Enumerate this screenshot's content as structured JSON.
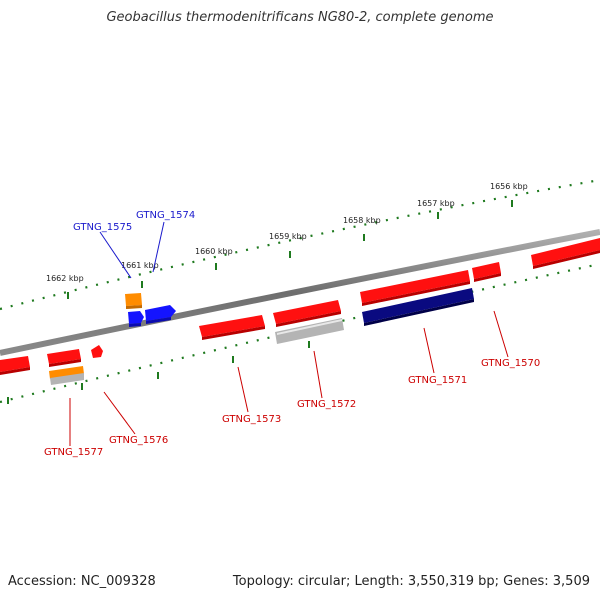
{
  "title": "Geobacillus thermodenitrificans NG80-2, complete genome",
  "footer": {
    "accession": "Accession: NC_009328",
    "summary": "Topology: circular; Length: 3,550,319 bp; Genes: 3,509"
  },
  "colors": {
    "backbone": "#7f7f7f",
    "tick": "#1f7a1f",
    "red_gene": "#ff1010",
    "orange_gene": "#ff8c00",
    "blue_gene": "#1414ff",
    "navy_gene": "#0a0a80",
    "gray_gene": "#b4b4b4",
    "label_red": "#cc0000",
    "label_blue": "#1a1acc"
  },
  "kbp_marks": [
    {
      "label": "1656 kbp"
    },
    {
      "label": "1657 kbp"
    },
    {
      "label": "1658 kbp"
    },
    {
      "label": "1659 kbp"
    },
    {
      "label": "1660 kbp"
    },
    {
      "label": "1661 kbp"
    },
    {
      "label": "1662 kbp"
    }
  ],
  "gene_labels": [
    {
      "name": "GTNG_1574",
      "color": "blue"
    },
    {
      "name": "GTNG_1575",
      "color": "blue"
    },
    {
      "name": "GTNG_1570",
      "color": "red"
    },
    {
      "name": "GTNG_1571",
      "color": "red"
    },
    {
      "name": "GTNG_1572",
      "color": "red"
    },
    {
      "name": "GTNG_1573",
      "color": "red"
    },
    {
      "name": "GTNG_1576",
      "color": "red"
    },
    {
      "name": "GTNG_1577",
      "color": "red"
    }
  ]
}
